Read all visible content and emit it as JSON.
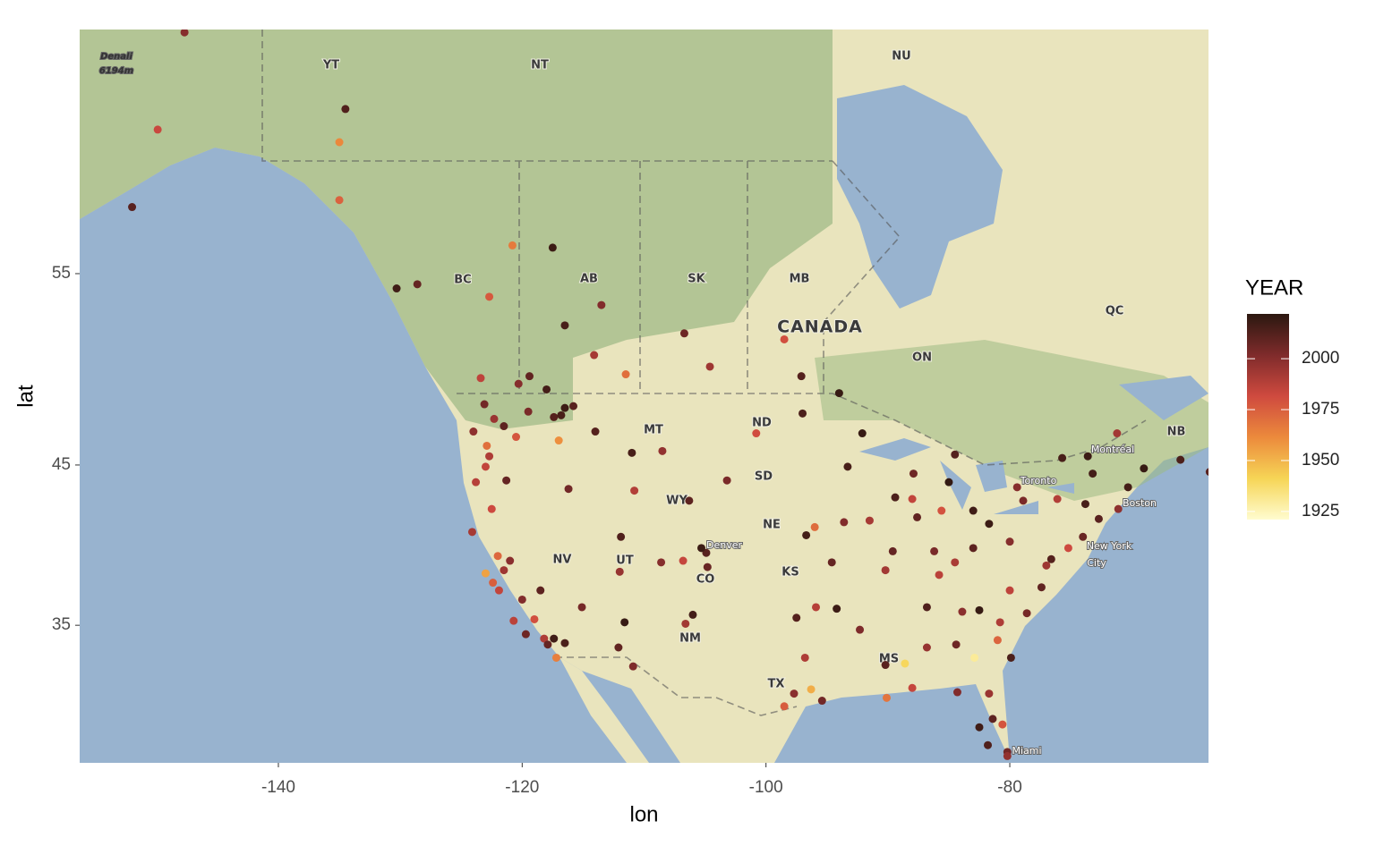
{
  "chart_data": {
    "type": "scatter",
    "xlabel": "lon",
    "ylabel": "lat",
    "xlim": [
      -156.3,
      -63.7
    ],
    "ylim": [
      25.3,
      64.9
    ],
    "y_scale": "mercator",
    "xticks": [
      -140,
      -120,
      -100,
      -80
    ],
    "yticks": [
      35,
      45,
      55
    ],
    "colorbar": {
      "title": "YEAR",
      "lim": [
        1921,
        2022
      ],
      "ticks": [
        1925,
        1950,
        1975,
        2000
      ],
      "colors": [
        "#fffccf",
        "#f6d556",
        "#ec8a3c",
        "#cf4a3f",
        "#7f2b2b",
        "#2b1810"
      ]
    },
    "map_labels": [
      "YT",
      "NT",
      "NU",
      "BC",
      "AB",
      "SK",
      "MB",
      "CANADA",
      "ON",
      "QC",
      "NB",
      "MT",
      "ND",
      "SD",
      "WY",
      "NE",
      "NV",
      "UT",
      "CO",
      "KS",
      "NM",
      "TX",
      "MS",
      "Denver",
      "Boston",
      "Montréal",
      "Toronto",
      "New York",
      "City",
      "Miami",
      "Denali",
      "6194m"
    ],
    "x": [
      -123.1,
      -122.3,
      -122.7,
      -123.0,
      -121.5,
      -120.5,
      -117.4,
      -116.8,
      -116.5,
      -119.5,
      -122.9,
      -124.0,
      -123.8,
      -121.3,
      -122.5,
      -120.3,
      -118.0,
      -115.8,
      -124.1,
      -117.0,
      -122.4,
      -121.9,
      -121.5,
      -120.0,
      -119.0,
      -118.2,
      -117.2,
      -117.9,
      -116.5,
      -122.0,
      -121.0,
      -123.0,
      -120.7,
      -119.7,
      -117.4,
      -118.5,
      -111.9,
      -112.0,
      -115.1,
      -111.6,
      -112.1,
      -110.9,
      -106.6,
      -106.0,
      -104.9,
      -105.3,
      -104.8,
      -106.8,
      -108.6,
      -114.0,
      -111.0,
      -108.5,
      -116.2,
      -110.8,
      -106.3,
      -103.2,
      -100.8,
      -97.0,
      -123.4,
      -119.4,
      -114.1,
      -113.5,
      -116.5,
      -117.5,
      -122.7,
      -120.8,
      -106.7,
      -104.6,
      -97.1,
      -98.5,
      -94.0,
      -111.5,
      -128.6,
      -130.3,
      -135.0,
      -134.5,
      -149.9,
      -147.7,
      -152.0,
      -135.0,
      -96.8,
      -95.4,
      -97.7,
      -98.5,
      -97.5,
      -95.9,
      -94.6,
      -96.7,
      -93.6,
      -93.3,
      -92.1,
      -90.2,
      -87.6,
      -89.4,
      -88.0,
      -86.2,
      -84.5,
      -83.0,
      -83.0,
      -85.6,
      -84.4,
      -86.8,
      -90.2,
      -90.1,
      -92.3,
      -86.8,
      -85.8,
      -81.7,
      -80.0,
      -77.0,
      -76.6,
      -75.2,
      -74.0,
      -73.8,
      -71.1,
      -72.7,
      -70.3,
      -78.6,
      -80.8,
      -79.9,
      -81.0,
      -77.4,
      -80.0,
      -82.5,
      -84.3,
      -81.7,
      -81.4,
      -82.5,
      -80.2,
      -80.2,
      -81.8,
      -80.6,
      -83.9,
      -88.0,
      -89.6,
      -91.5,
      -94.2,
      -96.0,
      -87.9,
      -84.5,
      -85.0,
      -76.1,
      -78.9,
      -73.2,
      -69.0,
      -66.0,
      -63.6,
      -79.4,
      -75.7,
      -73.6,
      -71.2,
      -88.6,
      -96.3,
      -82.9
    ],
    "y": [
      48.4,
      47.6,
      45.5,
      44.9,
      47.2,
      46.6,
      47.7,
      47.8,
      48.2,
      48.0,
      46.1,
      46.9,
      44.0,
      44.1,
      42.4,
      49.5,
      49.2,
      48.3,
      41.0,
      46.4,
      37.8,
      37.3,
      38.6,
      36.7,
      35.4,
      34.1,
      32.8,
      33.7,
      33.8,
      39.5,
      39.2,
      38.4,
      35.3,
      34.4,
      34.1,
      37.3,
      40.7,
      38.5,
      36.2,
      35.2,
      33.5,
      32.2,
      35.1,
      35.7,
      39.7,
      40.0,
      38.8,
      39.2,
      39.1,
      46.9,
      45.7,
      45.8,
      43.6,
      43.5,
      42.9,
      44.1,
      46.8,
      47.9,
      49.8,
      49.9,
      51.0,
      53.5,
      52.5,
      56.2,
      53.9,
      56.3,
      52.1,
      50.4,
      49.9,
      51.8,
      49.0,
      50.0,
      54.5,
      54.3,
      60.7,
      62.0,
      61.2,
      64.8,
      58.0,
      58.3,
      32.8,
      29.8,
      30.3,
      29.4,
      35.5,
      36.2,
      39.1,
      40.8,
      41.6,
      44.9,
      46.8,
      38.6,
      41.9,
      43.1,
      43.0,
      39.8,
      39.1,
      40.0,
      42.3,
      42.3,
      33.7,
      33.5,
      32.3,
      30.0,
      34.7,
      36.2,
      38.3,
      41.5,
      40.4,
      38.9,
      39.3,
      40.0,
      40.7,
      42.7,
      42.4,
      41.8,
      43.7,
      35.8,
      35.2,
      32.8,
      34.0,
      37.5,
      37.3,
      36.0,
      30.4,
      30.3,
      28.5,
      27.9,
      26.1,
      25.8,
      26.6,
      28.1,
      35.9,
      30.7,
      39.8,
      41.7,
      36.1,
      41.3,
      44.5,
      45.6,
      44.0,
      43.0,
      42.9,
      44.5,
      44.8,
      45.3,
      44.6,
      43.7,
      45.4,
      45.5,
      46.8,
      32.4,
      30.6,
      32.8
    ],
    "values": [
      2005,
      1995,
      1990,
      1985,
      2010,
      1978,
      2012,
      2015,
      2018,
      2003,
      1970,
      1998,
      1988,
      2008,
      1982,
      2000,
      2016,
      2011,
      1992,
      1960,
      1975,
      1985,
      1994,
      2001,
      1980,
      1990,
      1965,
      2008,
      2014,
      1972,
      1999,
      1955,
      1987,
      2006,
      2017,
      2010,
      2013,
      1996,
      2004,
      2019,
      2009,
      2002,
      1993,
      2016,
      2011,
      2018,
      2007,
      1984,
      2000,
      2012,
      2015,
      1997,
      2005,
      1989,
      2010,
      2003,
      1981,
      2014,
      1986,
      2009,
      1992,
      2001,
      2015,
      2018,
      1977,
      1966,
      2006,
      1994,
      2012,
      1980,
      2019,
      1970,
      2008,
      2017,
      1962,
      2013,
      1983,
      2000,
      2011,
      1974,
      1990,
      2005,
      1999,
      1976,
      2012,
      1988,
      2008,
      2016,
      2001,
      2015,
      2019,
      1993,
      2009,
      2014,
      1985,
      2003,
      1991,
      2010,
      2017,
      1979,
      2006,
      1996,
      2011,
      1968,
      2002,
      2013,
      1987,
      2018,
      2000,
      1994,
      2012,
      1982,
      2007,
      2015,
      1998,
      2011,
      2016,
      2004,
      1990,
      2014,
      1973,
      2009,
      1986,
      2019,
      2001,
      1995,
      2010,
      2017,
      2005,
      1997,
      2013,
      1978,
      1999,
      1984,
      2008,
      1992,
      2018,
      1971,
      2006,
      2012,
      2020,
      1989,
      2003,
      2016,
      2019,
      2014,
      2011,
      2000,
      2015,
      2018,
      1993,
      1940,
      1952,
      1930
    ]
  }
}
